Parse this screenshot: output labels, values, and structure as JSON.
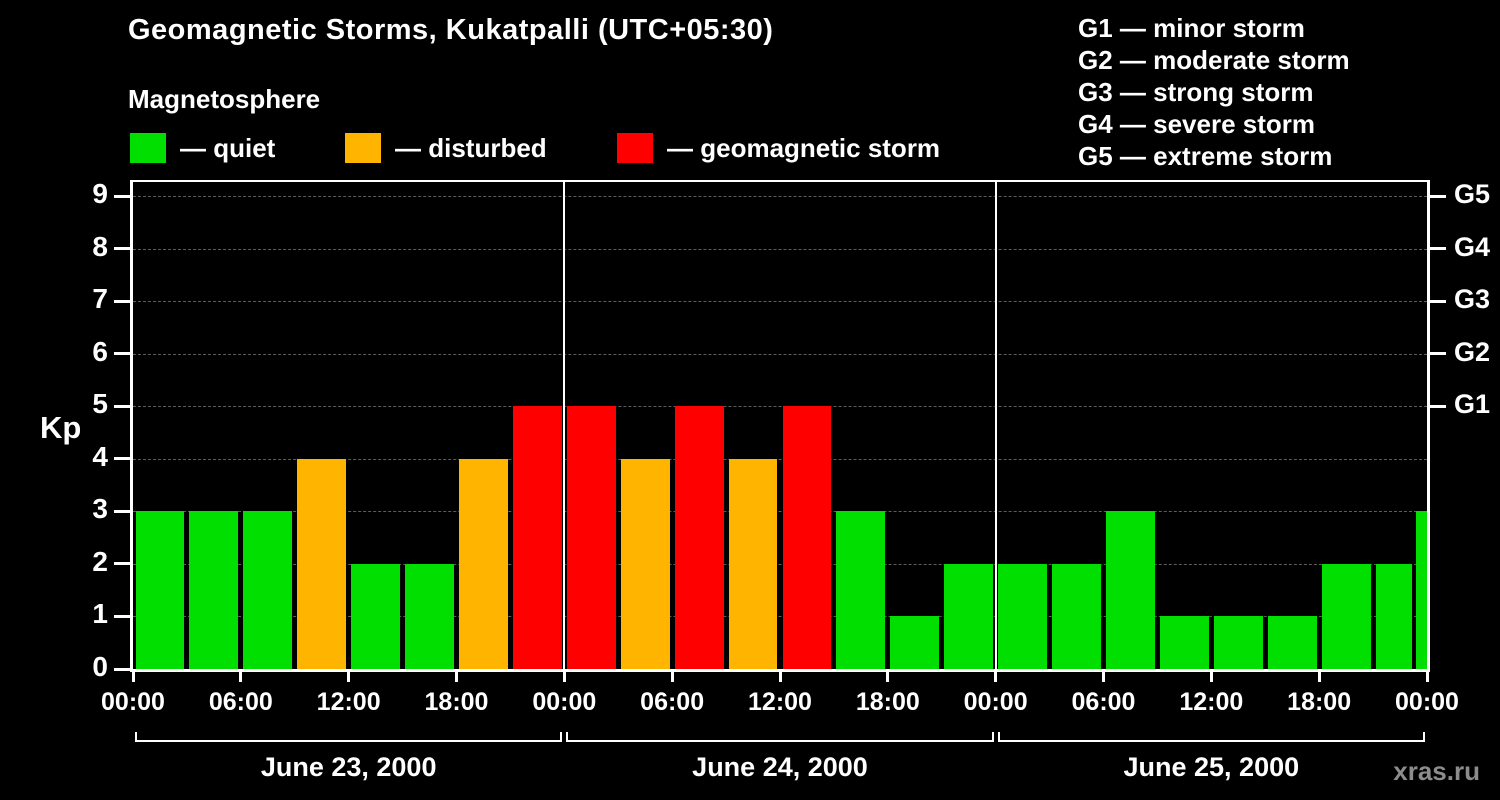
{
  "title": "Geomagnetic Storms, Kukatpalli (UTC+05:30)",
  "subtitle": "Magnetosphere",
  "ylabel": "Kp",
  "watermark": "xras.ru",
  "legend": {
    "quiet_label": "— quiet",
    "disturbed_label": "— disturbed",
    "storm_label": "— geomagnetic storm"
  },
  "g_legend": [
    "G1 — minor storm",
    "G2 — moderate storm",
    "G3 — strong storm",
    "G4 — severe storm",
    "G5 — extreme storm"
  ],
  "colors": {
    "quiet": "#00df00",
    "disturbed": "#ffb400",
    "storm": "#ff0000",
    "background": "#000000",
    "axis": "#ffffff",
    "grid": "#5c5c5c",
    "watermark": "#8c8c8c"
  },
  "chart_data": {
    "type": "bar",
    "title": "Geomagnetic Storms, Kukatpalli (UTC+05:30)",
    "ylabel": "Kp",
    "ylim": [
      0,
      9.4
    ],
    "yticks": [
      0,
      1,
      2,
      3,
      4,
      5,
      6,
      7,
      8,
      9
    ],
    "right_axis_ticks": [
      {
        "label": "G1",
        "value": 5
      },
      {
        "label": "G2",
        "value": 6
      },
      {
        "label": "G3",
        "value": 7
      },
      {
        "label": "G4",
        "value": 8
      },
      {
        "label": "G5",
        "value": 9
      }
    ],
    "x_tick_labels": [
      "00:00",
      "06:00",
      "12:00",
      "18:00",
      "00:00",
      "06:00",
      "12:00",
      "18:00",
      "00:00",
      "06:00",
      "12:00",
      "18:00",
      "00:00"
    ],
    "bar_interval_hours": 3,
    "days": [
      {
        "date": "June 23, 2000",
        "values": [
          3,
          3,
          3,
          4,
          2,
          2,
          4,
          5
        ]
      },
      {
        "date": "June 24, 2000",
        "values": [
          5,
          4,
          5,
          4,
          5,
          3,
          1,
          2
        ]
      },
      {
        "date": "June 25, 2000",
        "values": [
          2,
          2,
          3,
          1,
          1,
          1,
          2,
          2
        ]
      }
    ],
    "partial_next_value": 3,
    "thresholds": {
      "disturbed_min": 4,
      "storm_min": 5
    },
    "grid": "dashed-horizontal",
    "legend_position": "top"
  }
}
